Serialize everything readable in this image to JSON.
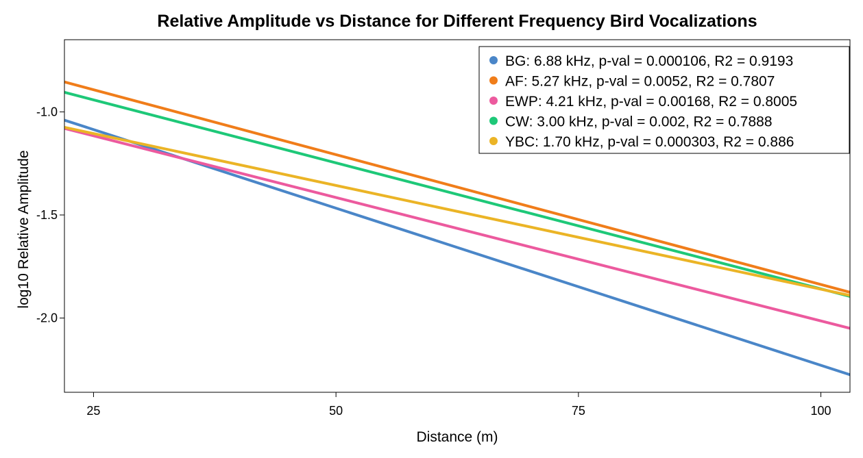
{
  "chart_data": {
    "type": "line",
    "title": "Relative Amplitude vs Distance for Different Frequency Bird Vocalizations",
    "xlabel": "Distance (m)",
    "ylabel": "log10 Relative Amplitude",
    "xlim": [
      22,
      103
    ],
    "ylim": [
      -2.36,
      -0.65
    ],
    "x_ticks": [
      25,
      50,
      75,
      100
    ],
    "x_tick_labels": [
      "25",
      "50",
      "75",
      "100"
    ],
    "y_ticks": [
      -1.0,
      -1.5,
      -2.0
    ],
    "y_tick_labels": [
      "-1.0",
      "-1.5",
      "-2.0"
    ],
    "grid": false,
    "legend_position": "top-right",
    "series": [
      {
        "name": "BG: 6.88 kHz, p-val = 0.000106, R2 = 0.9193",
        "color": "#4a86c8",
        "x": [
          22,
          103
        ],
        "y": [
          -1.04,
          -2.275
        ]
      },
      {
        "name": "AF: 5.27 kHz, p-val = 0.0052, R2 = 0.7807",
        "color": "#f07d1a",
        "x": [
          22,
          103
        ],
        "y": [
          -0.855,
          -1.875
        ]
      },
      {
        "name": "EWP: 4.21 kHz, p-val = 0.00168, R2 = 0.8005",
        "color": "#ec5a9e",
        "x": [
          22,
          103
        ],
        "y": [
          -1.08,
          -2.05
        ]
      },
      {
        "name": "CW: 3.00 kHz, p-val = 0.002, R2 = 0.7888",
        "color": "#1ec878",
        "x": [
          22,
          103
        ],
        "y": [
          -0.905,
          -1.895
        ]
      },
      {
        "name": "YBC: 1.70 kHz, p-val = 0.000303, R2 = 0.886",
        "color": "#ebb426",
        "x": [
          22,
          103
        ],
        "y": [
          -1.075,
          -1.89
        ]
      }
    ]
  }
}
